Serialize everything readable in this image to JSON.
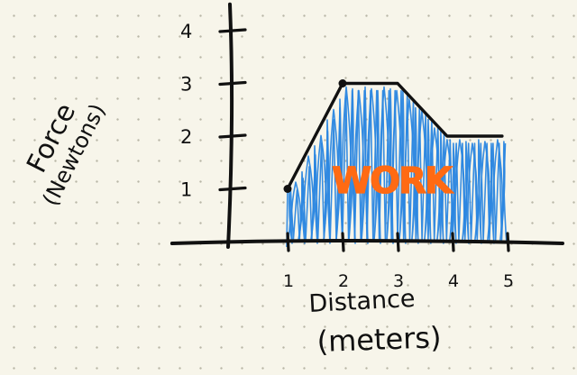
{
  "chart_data": {
    "type": "area",
    "title": "",
    "xlabel": "Distance (meters)",
    "ylabel": "Force (Newtons)",
    "xlabel_lines": [
      "Distance",
      "(meters)"
    ],
    "ylabel_lines": [
      "Force",
      "(Newtons)"
    ],
    "x_ticks": [
      "1",
      "2",
      "3",
      "4",
      "5"
    ],
    "y_ticks": [
      "1",
      "2",
      "3",
      "4"
    ],
    "xlim": [
      -1.1,
      6.0
    ],
    "ylim": [
      0,
      4.5
    ],
    "series": [
      {
        "x": [
          1,
          2,
          3,
          3.9,
          4.9
        ],
        "y": [
          1,
          3,
          3,
          2,
          2
        ]
      }
    ],
    "marked_points": [
      {
        "x": 1,
        "y": 1
      },
      {
        "x": 2,
        "y": 3
      }
    ],
    "fill_from_x": 1,
    "fill_to_x": 4.9,
    "annotation": "WORK",
    "grid": false,
    "colors": {
      "ink": "#111111",
      "fill": "#2a86e0",
      "annotation": "#ff6a13",
      "paper": "#f7f5ea",
      "dots": "#b9b6a6"
    }
  }
}
